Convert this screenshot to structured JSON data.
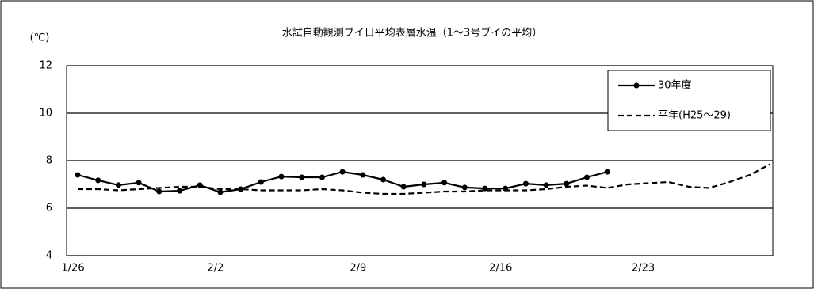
{
  "chart_data": {
    "type": "line",
    "title": "水試自動観測ブイ日平均表層水温（1～3号ブイの平均）",
    "y_label": "(℃)",
    "categories": [
      "1/26",
      null,
      null,
      null,
      null,
      null,
      null,
      "2/2",
      null,
      null,
      null,
      null,
      null,
      null,
      "2/9",
      null,
      null,
      null,
      null,
      null,
      null,
      "2/16",
      null,
      null,
      null,
      null,
      null,
      null,
      "2/23",
      null,
      null,
      null,
      null,
      null,
      null
    ],
    "series": [
      {
        "name": "30年度",
        "color": "#000000",
        "style": "solid-marker",
        "values": [
          7.4,
          7.17,
          6.97,
          7.07,
          6.7,
          6.73,
          6.97,
          6.67,
          6.8,
          7.1,
          7.33,
          7.3,
          7.3,
          7.53,
          7.4,
          7.2,
          6.9,
          7.0,
          7.07,
          6.87,
          6.83,
          6.83,
          7.03,
          6.97,
          7.03,
          7.3,
          7.53,
          null,
          null,
          null,
          null,
          null,
          null,
          null,
          null
        ]
      },
      {
        "name": "平年(H25～29)",
        "color": "#000000",
        "style": "dashed",
        "values": [
          6.8,
          6.8,
          6.75,
          6.8,
          6.85,
          6.9,
          6.9,
          6.8,
          6.8,
          6.75,
          6.75,
          6.75,
          6.8,
          6.75,
          6.65,
          6.6,
          6.6,
          6.65,
          6.7,
          6.7,
          6.75,
          6.75,
          6.75,
          6.8,
          6.9,
          6.95,
          6.85,
          7.0,
          7.05,
          7.1,
          6.9,
          6.85,
          7.1,
          7.4,
          7.85
        ]
      }
    ],
    "ylim": [
      4,
      12
    ],
    "yticks": [
      4,
      6,
      8,
      10,
      12
    ],
    "grid": true,
    "legend": "top-right"
  }
}
